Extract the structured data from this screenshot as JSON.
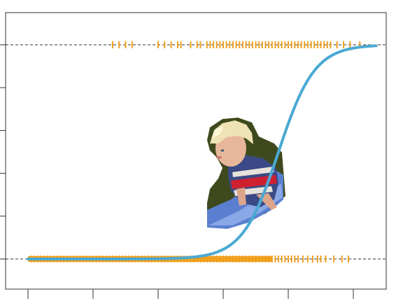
{
  "chart_data": {
    "type": "scatter",
    "title": "",
    "xlabel": "",
    "ylabel": "",
    "xlim": [
      0,
      1.05
    ],
    "ylim": [
      -0.15,
      1.15
    ],
    "x_ticks": [
      0,
      0.2,
      0.4,
      0.6,
      0.8,
      1.0
    ],
    "y_ticks": [
      0,
      0.2,
      0.4,
      0.6,
      0.8,
      1.0
    ],
    "tick_labels_visible": false,
    "grid": false,
    "reference_lines": [
      0,
      1
    ],
    "observations_y0_x": [
      0.01,
      0.02,
      0.03,
      0.04,
      0.05,
      0.06,
      0.07,
      0.08,
      0.09,
      0.1,
      0.11,
      0.12,
      0.13,
      0.14,
      0.15,
      0.16,
      0.17,
      0.18,
      0.19,
      0.2,
      0.21,
      0.22,
      0.23,
      0.24,
      0.25,
      0.26,
      0.27,
      0.28,
      0.29,
      0.3,
      0.31,
      0.32,
      0.33,
      0.34,
      0.35,
      0.36,
      0.37,
      0.38,
      0.39,
      0.4,
      0.41,
      0.42,
      0.43,
      0.44,
      0.45,
      0.46,
      0.47,
      0.48,
      0.49,
      0.5,
      0.51,
      0.52,
      0.53,
      0.54,
      0.55,
      0.56,
      0.57,
      0.58,
      0.59,
      0.6,
      0.61,
      0.62,
      0.63,
      0.64,
      0.65,
      0.66,
      0.67,
      0.68,
      0.69,
      0.7,
      0.71,
      0.72,
      0.73,
      0.74,
      0.75,
      0.76,
      0.77,
      0.78,
      0.79,
      0.8,
      0.81,
      0.82,
      0.83,
      0.845,
      0.86,
      0.875,
      0.89,
      0.9,
      0.915,
      0.94,
      0.965,
      0.985
    ],
    "observations_y1_x": [
      0.26,
      0.28,
      0.3,
      0.32,
      0.4,
      0.42,
      0.44,
      0.46,
      0.47,
      0.5,
      0.52,
      0.53,
      0.55,
      0.56,
      0.57,
      0.58,
      0.59,
      0.6,
      0.61,
      0.62,
      0.63,
      0.64,
      0.65,
      0.66,
      0.67,
      0.68,
      0.69,
      0.7,
      0.71,
      0.72,
      0.73,
      0.74,
      0.75,
      0.76,
      0.77,
      0.78,
      0.79,
      0.8,
      0.81,
      0.82,
      0.83,
      0.84,
      0.85,
      0.86,
      0.87,
      0.88,
      0.89,
      0.9,
      0.91,
      0.92,
      0.93,
      0.95,
      0.97,
      0.99,
      1.02
    ],
    "fitted_curve": {
      "type": "logistic",
      "midpoint": 0.77,
      "slope": 18,
      "x_range": [
        0,
        1.07
      ]
    },
    "colors": {
      "curve": "#4aa9d3",
      "observations": "#f0a01e",
      "reference_line": "#333333",
      "axis": "#333333"
    },
    "decorative_image": "child-on-slide-photo"
  }
}
